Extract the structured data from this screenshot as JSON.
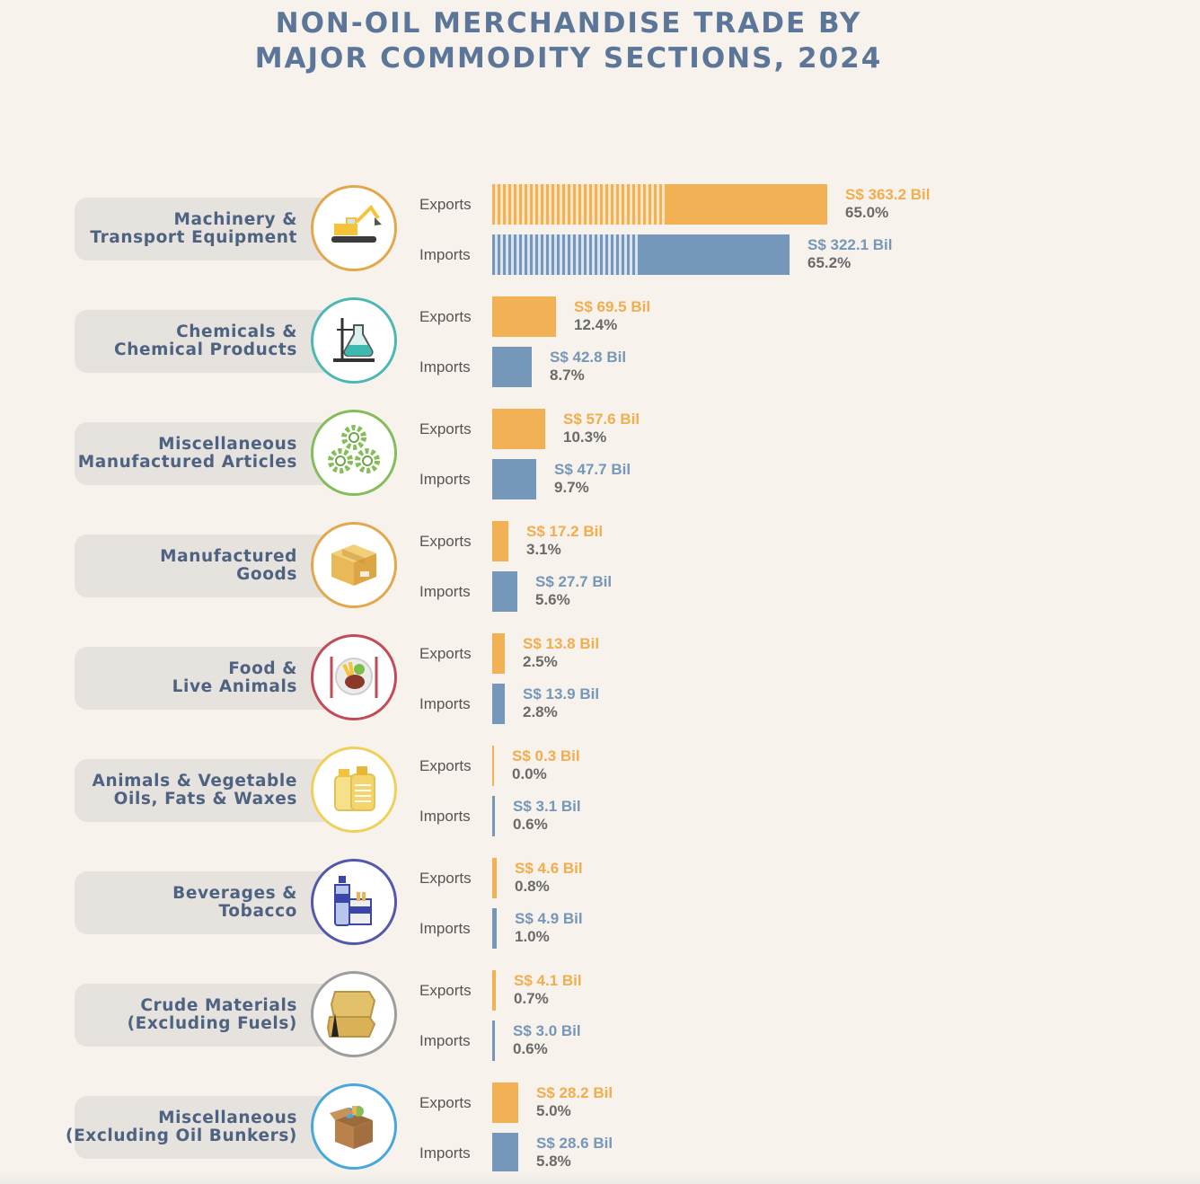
{
  "title_line1": "NON-OIL MERCHANDISE TRADE BY",
  "title_line2": "MAJOR COMMODITY SECTIONS, 2024",
  "chart_data": {
    "type": "bar",
    "orientation": "horizontal",
    "title": "NON-OIL MERCHANDISE TRADE BY MAJOR COMMODITY SECTIONS, 2024",
    "series_labels": [
      "Exports",
      "Imports"
    ],
    "currency_prefix": "S$",
    "unit_suffix": "Bil",
    "colors": {
      "exports": "#f2b155",
      "imports": "#7597b9"
    },
    "categories": [
      {
        "name_lines": [
          "Machinery &",
          "Transport Equipment"
        ],
        "icon": "excavator-icon",
        "ring": "#e3a74c",
        "exports": {
          "value": 363.2,
          "pct": "65.0%"
        },
        "imports": {
          "value": 322.1,
          "pct": "65.2%"
        },
        "hatched_share": {
          "exports": 0.52,
          "imports": 0.49
        }
      },
      {
        "name_lines": [
          "Chemicals &",
          "Chemical Products"
        ],
        "icon": "lab-flask-icon",
        "ring": "#4db8b3",
        "exports": {
          "value": 69.5,
          "pct": "12.4%"
        },
        "imports": {
          "value": 42.8,
          "pct": "8.7%"
        }
      },
      {
        "name_lines": [
          "Miscellaneous",
          "Manufactured Articles"
        ],
        "icon": "gears-icon",
        "ring": "#86bd5a",
        "exports": {
          "value": 57.6,
          "pct": "10.3%"
        },
        "imports": {
          "value": 47.7,
          "pct": "9.7%"
        }
      },
      {
        "name_lines": [
          "Manufactured",
          "Goods"
        ],
        "icon": "cardboard-box-icon",
        "ring": "#e3a74c",
        "exports": {
          "value": 17.2,
          "pct": "3.1%"
        },
        "imports": {
          "value": 27.7,
          "pct": "5.6%"
        }
      },
      {
        "name_lines": [
          "Food &",
          "Live Animals"
        ],
        "icon": "food-plate-icon",
        "ring": "#c24b58",
        "exports": {
          "value": 13.8,
          "pct": "2.5%"
        },
        "imports": {
          "value": 13.9,
          "pct": "2.8%"
        }
      },
      {
        "name_lines": [
          "Animals & Vegetable",
          "Oils, Fats & Waxes"
        ],
        "icon": "oil-bottles-icon",
        "ring": "#efd05a",
        "exports": {
          "value": 0.3,
          "pct": "0.0%"
        },
        "imports": {
          "value": 3.1,
          "pct": "0.6%"
        }
      },
      {
        "name_lines": [
          "Beverages &",
          "Tobacco"
        ],
        "icon": "bottle-cigarettes-icon",
        "ring": "#5358ad",
        "exports": {
          "value": 4.6,
          "pct": "0.8%"
        },
        "imports": {
          "value": 4.9,
          "pct": "1.0%"
        }
      },
      {
        "name_lines": [
          "Crude Materials",
          "(Excluding Fuels)"
        ],
        "icon": "sacks-icon",
        "ring": "#9d9d9d",
        "exports": {
          "value": 4.1,
          "pct": "0.7%"
        },
        "imports": {
          "value": 3.0,
          "pct": "0.6%"
        }
      },
      {
        "name_lines": [
          "Miscellaneous",
          "(Excluding Oil Bunkers)"
        ],
        "icon": "open-box-icon",
        "ring": "#46a8dd",
        "exports": {
          "value": 28.2,
          "pct": "5.0%"
        },
        "imports": {
          "value": 28.6,
          "pct": "5.8%"
        }
      }
    ]
  }
}
